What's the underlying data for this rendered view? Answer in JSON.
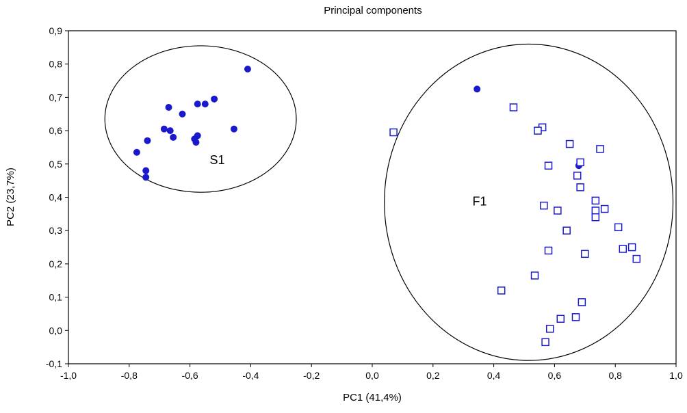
{
  "chart_data": {
    "type": "scatter",
    "title": "Principal components",
    "xlabel": "PC1 (41,4%)",
    "ylabel": "PC2 (23,7%)",
    "xlim": [
      -1.0,
      1.0
    ],
    "ylim": [
      -0.1,
      0.9
    ],
    "xticks": [
      "-1,0",
      "-0,8",
      "-0,6",
      "-0,4",
      "-0,2",
      "0,0",
      "0,2",
      "0,4",
      "0,6",
      "0,8",
      "1,0"
    ],
    "yticks": [
      "0,9",
      "0,8",
      "0,7",
      "0,6",
      "0,5",
      "0,4",
      "0,3",
      "0,2",
      "0,1",
      "0,0",
      "-0,1"
    ],
    "grid": false,
    "colors": {
      "marker": "#1a1acc",
      "ellipse": "#000000",
      "frame": "#000000"
    },
    "series": [
      {
        "marker": "filled-circle",
        "points": [
          {
            "x": -0.41,
            "y": 0.785
          },
          {
            "x": -0.52,
            "y": 0.695
          },
          {
            "x": -0.55,
            "y": 0.68
          },
          {
            "x": -0.575,
            "y": 0.68
          },
          {
            "x": -0.67,
            "y": 0.67
          },
          {
            "x": -0.625,
            "y": 0.65
          },
          {
            "x": -0.685,
            "y": 0.605
          },
          {
            "x": -0.665,
            "y": 0.6
          },
          {
            "x": -0.655,
            "y": 0.58
          },
          {
            "x": -0.455,
            "y": 0.605
          },
          {
            "x": -0.575,
            "y": 0.585
          },
          {
            "x": -0.585,
            "y": 0.575
          },
          {
            "x": -0.58,
            "y": 0.565
          },
          {
            "x": -0.74,
            "y": 0.57
          },
          {
            "x": -0.775,
            "y": 0.535
          },
          {
            "x": -0.745,
            "y": 0.48
          },
          {
            "x": -0.745,
            "y": 0.46
          },
          {
            "x": 0.345,
            "y": 0.725
          },
          {
            "x": 0.68,
            "y": 0.495
          }
        ]
      },
      {
        "marker": "open-square",
        "points": [
          {
            "x": 0.07,
            "y": 0.595
          },
          {
            "x": 0.465,
            "y": 0.67
          },
          {
            "x": 0.56,
            "y": 0.61
          },
          {
            "x": 0.545,
            "y": 0.6
          },
          {
            "x": 0.65,
            "y": 0.56
          },
          {
            "x": 0.75,
            "y": 0.545
          },
          {
            "x": 0.58,
            "y": 0.495
          },
          {
            "x": 0.685,
            "y": 0.505
          },
          {
            "x": 0.675,
            "y": 0.465
          },
          {
            "x": 0.685,
            "y": 0.43
          },
          {
            "x": 0.735,
            "y": 0.39
          },
          {
            "x": 0.565,
            "y": 0.375
          },
          {
            "x": 0.61,
            "y": 0.36
          },
          {
            "x": 0.735,
            "y": 0.36
          },
          {
            "x": 0.765,
            "y": 0.365
          },
          {
            "x": 0.735,
            "y": 0.34
          },
          {
            "x": 0.64,
            "y": 0.3
          },
          {
            "x": 0.81,
            "y": 0.31
          },
          {
            "x": 0.825,
            "y": 0.245
          },
          {
            "x": 0.855,
            "y": 0.25
          },
          {
            "x": 0.58,
            "y": 0.24
          },
          {
            "x": 0.7,
            "y": 0.23
          },
          {
            "x": 0.87,
            "y": 0.215
          },
          {
            "x": 0.535,
            "y": 0.165
          },
          {
            "x": 0.425,
            "y": 0.12
          },
          {
            "x": 0.69,
            "y": 0.085
          },
          {
            "x": 0.62,
            "y": 0.035
          },
          {
            "x": 0.67,
            "y": 0.04
          },
          {
            "x": 0.585,
            "y": 0.005
          },
          {
            "x": 0.57,
            "y": -0.035
          }
        ]
      }
    ],
    "annotations": [
      {
        "label": "S1",
        "x": -0.535,
        "y": 0.5
      },
      {
        "label": "F1",
        "x": 0.33,
        "y": 0.375
      }
    ],
    "ellipses": [
      {
        "cx": -0.565,
        "cy": 0.635,
        "rx": 0.315,
        "ry": 0.22
      },
      {
        "cx": 0.515,
        "cy": 0.385,
        "rx": 0.475,
        "ry": 0.475
      }
    ]
  }
}
